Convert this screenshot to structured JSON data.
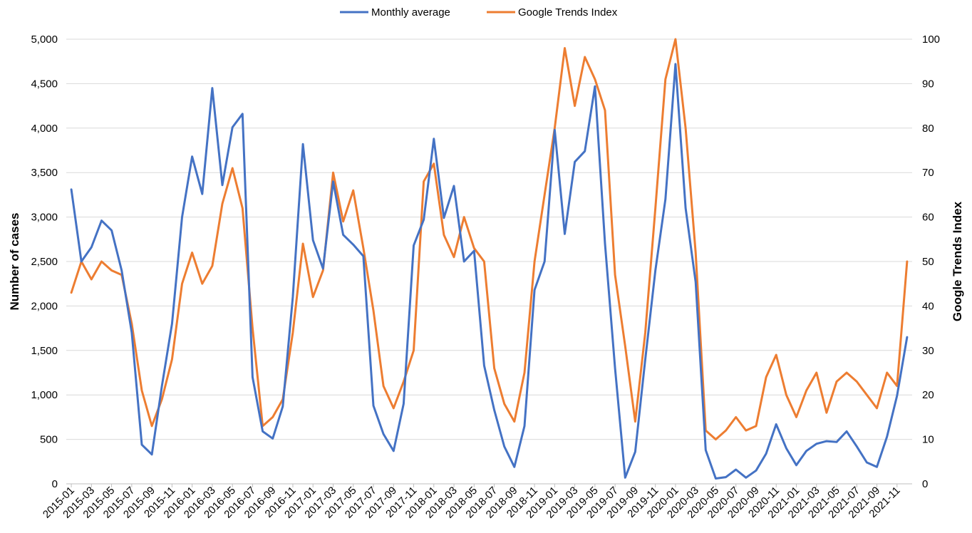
{
  "chart_data": {
    "type": "line",
    "legend": {
      "position": "top"
    },
    "grid": true,
    "x": [
      "2015-01",
      "2015-02",
      "2015-03",
      "2015-04",
      "2015-05",
      "2015-06",
      "2015-07",
      "2015-08",
      "2015-09",
      "2015-10",
      "2015-11",
      "2015-12",
      "2016-01",
      "2016-02",
      "2016-03",
      "2016-04",
      "2016-05",
      "2016-06",
      "2016-07",
      "2016-08",
      "2016-09",
      "2016-10",
      "2016-11",
      "2016-12",
      "2017-01",
      "2017-02",
      "2017-03",
      "2017-04",
      "2017-05",
      "2017-06",
      "2017-07",
      "2017-08",
      "2017-09",
      "2017-10",
      "2017-11",
      "2017-12",
      "2018-01",
      "2018-02",
      "2018-03",
      "2018-04",
      "2018-05",
      "2018-06",
      "2018-07",
      "2018-08",
      "2018-09",
      "2018-10",
      "2018-11",
      "2018-12",
      "2019-01",
      "2019-02",
      "2019-03",
      "2019-04",
      "2019-05",
      "2019-06",
      "2019-07",
      "2019-08",
      "2019-09",
      "2019-10",
      "2019-11",
      "2019-12",
      "2020-01",
      "2020-02",
      "2020-03",
      "2020-04",
      "2020-05",
      "2020-06",
      "2020-07",
      "2020-08",
      "2020-09",
      "2020-10",
      "2020-11",
      "2020-12",
      "2021-01",
      "2021-02",
      "2021-03",
      "2021-04",
      "2021-05",
      "2021-06",
      "2021-07",
      "2021-08",
      "2021-09",
      "2021-10",
      "2021-11",
      "2021-12"
    ],
    "x_tick_labels": [
      "2015-01",
      "2015-03",
      "2015-05",
      "2015-07",
      "2015-09",
      "2015-11",
      "2016-01",
      "2016-03",
      "2016-05",
      "2016-07",
      "2016-09",
      "2016-11",
      "2017-01",
      "2017-03",
      "2017-05",
      "2017-07",
      "2017-09",
      "2017-11",
      "2018-01",
      "2018-03",
      "2018-05",
      "2018-07",
      "2018-09",
      "2018-11",
      "2019-01",
      "2019-03",
      "2019-05",
      "2019-07",
      "2019-09",
      "2019-11",
      "2020-01",
      "2020-03",
      "2020-05",
      "2020-07",
      "2020-09",
      "2020-11",
      "2021-01",
      "2021-03",
      "2021-05",
      "2021-07",
      "2021-09",
      "2021-11"
    ],
    "ylabel": "Number of cases",
    "ylim": [
      0,
      5000
    ],
    "y_ticks": [
      "0",
      "500",
      "1,000",
      "1,500",
      "2,000",
      "2,500",
      "3,000",
      "3,500",
      "4,000",
      "4,500",
      "5,000"
    ],
    "y2label": "Google Trends Index",
    "y2lim": [
      0,
      100
    ],
    "y2_ticks": [
      "0",
      "10",
      "20",
      "30",
      "40",
      "50",
      "60",
      "70",
      "80",
      "90",
      "100"
    ],
    "series": [
      {
        "name": "Monthly average",
        "axis": "left",
        "color": "#4472C4",
        "values": [
          3310,
          2500,
          2660,
          2960,
          2850,
          2400,
          1700,
          440,
          330,
          1100,
          1800,
          3000,
          3680,
          3260,
          4450,
          3360,
          4010,
          4160,
          1200,
          590,
          510,
          870,
          2100,
          3820,
          2740,
          2420,
          3400,
          2800,
          2690,
          2560,
          880,
          560,
          370,
          900,
          2680,
          2970,
          3880,
          2990,
          3350,
          2500,
          2620,
          1330,
          830,
          420,
          190,
          650,
          2180,
          2500,
          3980,
          2810,
          3620,
          3740,
          4470,
          2700,
          1300,
          70,
          360,
          1400,
          2400,
          3200,
          4720,
          3100,
          2270,
          380,
          60,
          75,
          160,
          70,
          150,
          340,
          670,
          400,
          210,
          370,
          450,
          480,
          470,
          590,
          420,
          240,
          190,
          530,
          990,
          1650
        ]
      },
      {
        "name": "Google Trends Index",
        "axis": "right",
        "color": "#ED7D31",
        "values": [
          43,
          50,
          46,
          50,
          48,
          47,
          36,
          21,
          13,
          19,
          28,
          45,
          52,
          45,
          49,
          63,
          71,
          62,
          35,
          13,
          15,
          19,
          34,
          54,
          42,
          48,
          70,
          59,
          66,
          53,
          39,
          22,
          17,
          23,
          30,
          68,
          72,
          56,
          51,
          60,
          53,
          50,
          26,
          18,
          14,
          25,
          50,
          65,
          80,
          98,
          85,
          96,
          91,
          84,
          47,
          31,
          14,
          34,
          62,
          91,
          100,
          80,
          52,
          12,
          10,
          12,
          15,
          12,
          13,
          24,
          29,
          20,
          15,
          21,
          25,
          16,
          23,
          25,
          23,
          20,
          17,
          25,
          22,
          50
        ]
      }
    ]
  }
}
